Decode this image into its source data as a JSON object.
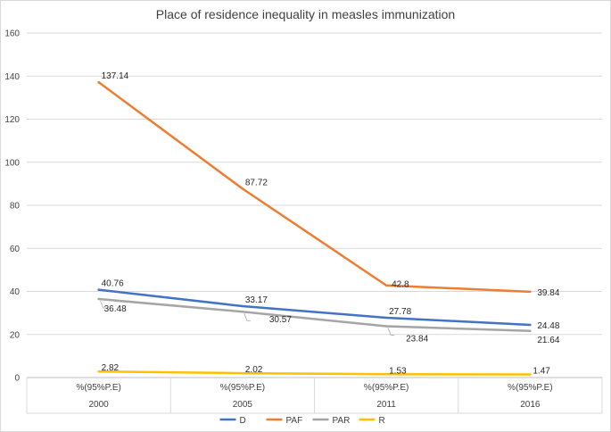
{
  "chart_data": {
    "type": "line",
    "title": "Place of residence inequality in measles immunization",
    "categories": [
      "2000",
      "2005",
      "2011",
      "2016"
    ],
    "category_sublabels": [
      "%(95%P.E)",
      "%(95%P.E)",
      "%(95%P.E)",
      "%(95%P.E)"
    ],
    "ylim": [
      0,
      160
    ],
    "yticks": [
      "0",
      "20",
      "40",
      "60",
      "80",
      "100",
      "120",
      "140",
      "160"
    ],
    "grid": true,
    "legend_position": "bottom",
    "series": [
      {
        "name": "D",
        "color": "#4472C4",
        "values": [
          40.76,
          33.17,
          27.78,
          24.48
        ],
        "labels": [
          "40.76",
          "33.17",
          "27.78",
          "24.48"
        ]
      },
      {
        "name": "PAF",
        "color": "#ED7D31",
        "values": [
          137.14,
          87.72,
          42.8,
          39.84
        ],
        "labels": [
          "137.14",
          "87.72",
          "42.8",
          "39.84"
        ]
      },
      {
        "name": "PAR",
        "color": "#A5A5A5",
        "values": [
          36.48,
          30.57,
          23.84,
          21.64
        ],
        "labels": [
          "36.48",
          "30.57",
          "23.84",
          "21.64"
        ]
      },
      {
        "name": "R",
        "color": "#FFC000",
        "values": [
          2.82,
          2.02,
          1.53,
          1.47
        ],
        "labels": [
          "2.82",
          "2.02",
          "1.53",
          "1.47"
        ]
      }
    ]
  }
}
